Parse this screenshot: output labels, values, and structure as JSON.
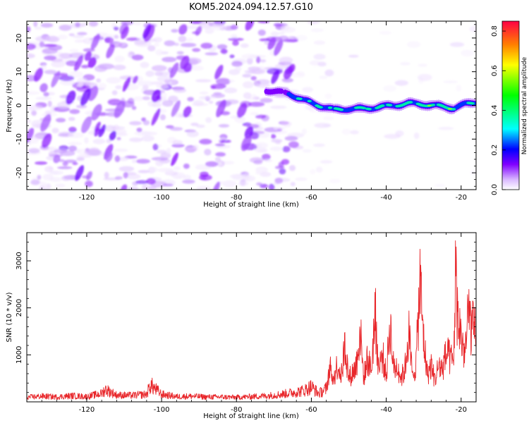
{
  "figure": {
    "title": "KOM5.2024.094.12.57.G10"
  },
  "chart_data": [
    {
      "type": "heatmap",
      "title": "KOM5.2024.094.12.57.G10",
      "xlabel": "Height of straight line (km)",
      "ylabel": "Frequency (Hz)",
      "xlim": [
        -136,
        -16
      ],
      "ylim": [
        -25,
        25
      ],
      "x_ticks": [
        -120,
        -100,
        -80,
        -60,
        -40,
        -20
      ],
      "y_ticks": [
        -20,
        -10,
        0,
        10,
        20
      ],
      "x_tick_labels": [
        "-120",
        "-100",
        "-80",
        "-60",
        "-40",
        "-20"
      ],
      "y_tick_labels": [
        "-20",
        "-10",
        "0",
        "10",
        "20"
      ],
      "colorbar": {
        "label": "Normalized spectral amplitude",
        "range": [
          0,
          0.85
        ],
        "ticks": [
          0.0,
          0.2,
          0.4,
          0.6,
          0.8
        ],
        "tick_labels": [
          "0.0",
          "0.2",
          "0.4",
          "0.6",
          "0.8"
        ],
        "colormap": [
          "#ffffff",
          "#d9b8ff",
          "#8000ff",
          "#0000ff",
          "#00ffff",
          "#00ff00",
          "#ffff00",
          "#ff8000",
          "#ff0000"
        ]
      },
      "ridge": {
        "description_points_x": [
          -72,
          -66,
          -62,
          -58,
          -54,
          -50,
          -46,
          -42,
          -38,
          -34,
          -30,
          -26,
          -22,
          -19,
          -16
        ],
        "description_points_y": [
          4.5,
          3.5,
          1.5,
          0.0,
          -1.3,
          -1.0,
          -1.0,
          -0.5,
          0.0,
          0.6,
          0.3,
          -0.2,
          -0.8,
          0.3,
          1.0
        ],
        "peak_amplitude": [
          0.25,
          0.35,
          0.5,
          0.45,
          0.5,
          0.45,
          0.55,
          0.5,
          0.5,
          0.55,
          0.55,
          0.6,
          0.55,
          0.45,
          0.4
        ]
      }
    },
    {
      "type": "line",
      "xlabel": "Height of straight line (km)",
      "ylabel": "SNR (10 * v/v)",
      "xlim": [
        -136,
        -16
      ],
      "ylim": [
        0,
        3600
      ],
      "x_ticks": [
        -120,
        -100,
        -80,
        -60,
        -40,
        -20
      ],
      "y_ticks": [
        1000,
        2000,
        3000
      ],
      "x_tick_labels": [
        "-120",
        "-100",
        "-80",
        "-60",
        "-40",
        "-20"
      ],
      "y_tick_labels": [
        "1000",
        "2000",
        "3000"
      ],
      "series": [
        {
          "color": "#e8262a",
          "x": [
            -136,
            -132,
            -128,
            -124,
            -120,
            -116,
            -115,
            -112,
            -108,
            -104,
            -103,
            -100,
            -96,
            -92,
            -88,
            -84,
            -80,
            -76,
            -72,
            -68,
            -64,
            -62,
            -60,
            -58,
            -56,
            -55,
            -54,
            -53,
            -52,
            -51,
            -50,
            -49,
            -48,
            -47,
            -46,
            -45,
            -44,
            -43,
            -42,
            -41,
            -40,
            -39,
            -38,
            -37,
            -36,
            -35,
            -34,
            -33,
            -32,
            -31,
            -30,
            -29,
            -28,
            -27,
            -26,
            -25,
            -24,
            -23,
            -22,
            -21.5,
            -21,
            -20,
            -19,
            -18,
            -17,
            -16
          ],
          "y": [
            120,
            150,
            130,
            160,
            140,
            220,
            330,
            180,
            170,
            200,
            450,
            200,
            140,
            150,
            130,
            130,
            120,
            140,
            160,
            200,
            260,
            300,
            400,
            220,
            350,
            900,
            650,
            1050,
            700,
            1600,
            650,
            800,
            1000,
            2000,
            650,
            1200,
            850,
            2450,
            900,
            1300,
            700,
            2200,
            900,
            1000,
            650,
            900,
            1950,
            650,
            1100,
            3300,
            1700,
            750,
            1000,
            600,
            1000,
            900,
            1300,
            1200,
            1050,
            3550,
            2400,
            1800,
            1300,
            2400,
            2000,
            1800
          ]
        }
      ]
    }
  ]
}
